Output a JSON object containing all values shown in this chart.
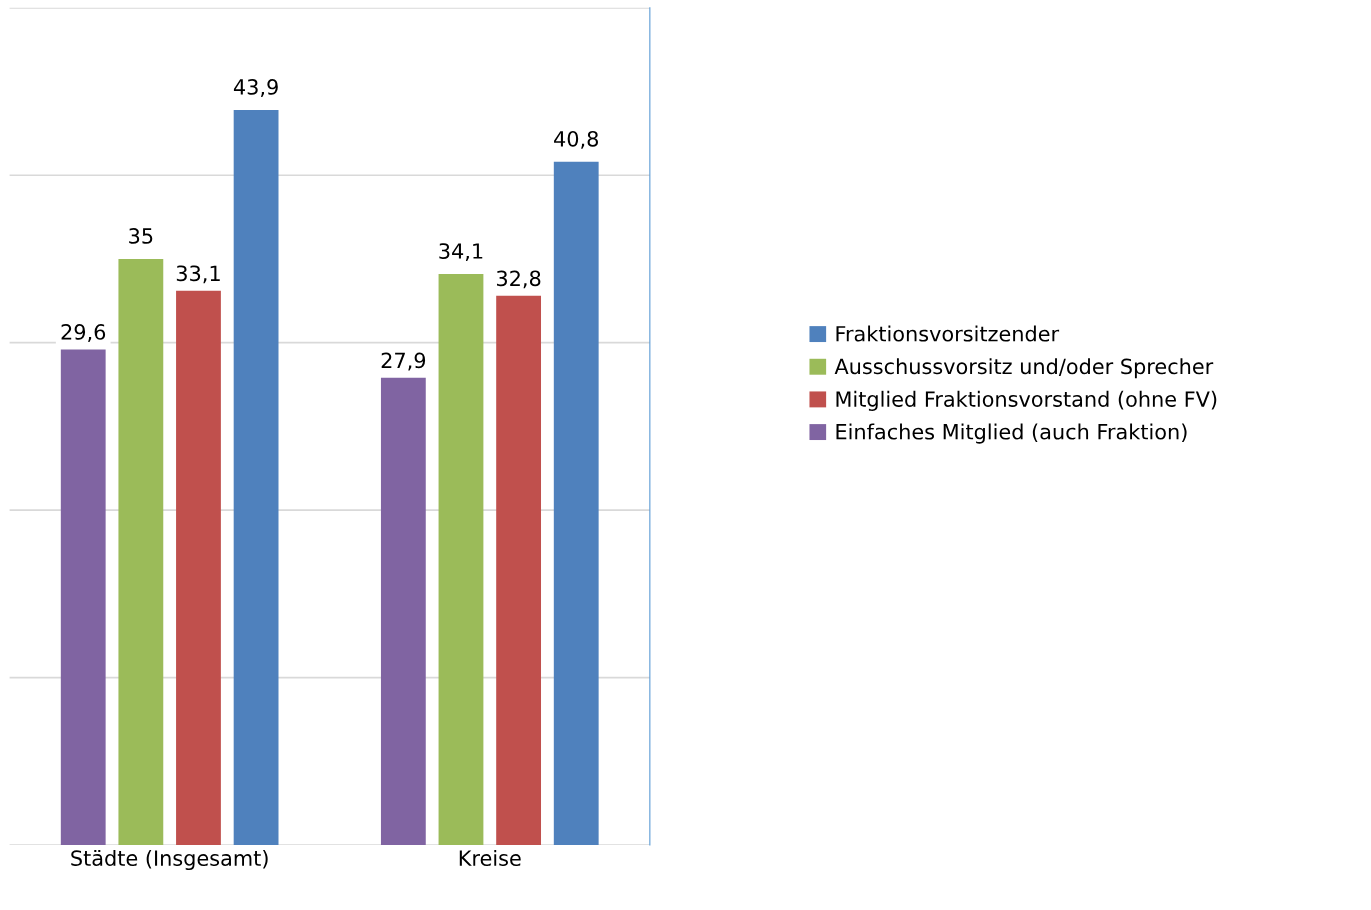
{
  "chart_data": {
    "type": "bar",
    "categories": [
      "Städte (Insgesamt)",
      "Kreise"
    ],
    "series": [
      {
        "name": "Einfaches Mitglied (auch Fraktion)",
        "color": "#8064a2",
        "values": [
          29.6,
          27.9
        ],
        "value_labels": [
          "29,6",
          "27,9"
        ]
      },
      {
        "name": "Ausschussvorsitz und/oder Sprecher",
        "color": "#9bbb59",
        "values": [
          35,
          34.1
        ],
        "value_labels": [
          "35",
          "34,1"
        ]
      },
      {
        "name": "Mitglied Fraktionsvorstand (ohne FV)",
        "color": "#c0504d",
        "values": [
          33.1,
          32.8
        ],
        "value_labels": [
          "33,1",
          "32,8"
        ]
      },
      {
        "name": "Fraktionsvorsitzender",
        "color": "#4f81bd",
        "values": [
          43.9,
          40.8
        ],
        "value_labels": [
          "43,9",
          "40,8"
        ]
      }
    ],
    "ylim": [
      0,
      50
    ],
    "yticks": [
      {
        "value": 0,
        "label": null
      },
      {
        "value": 10,
        "label": null
      },
      {
        "value": 20,
        "label": null
      },
      {
        "value": 30,
        "label": null
      },
      {
        "value": 40,
        "label": null
      },
      {
        "value": 50,
        "label": null
      }
    ],
    "grid": "y",
    "legend": "right",
    "tick_labels": "x"
  }
}
